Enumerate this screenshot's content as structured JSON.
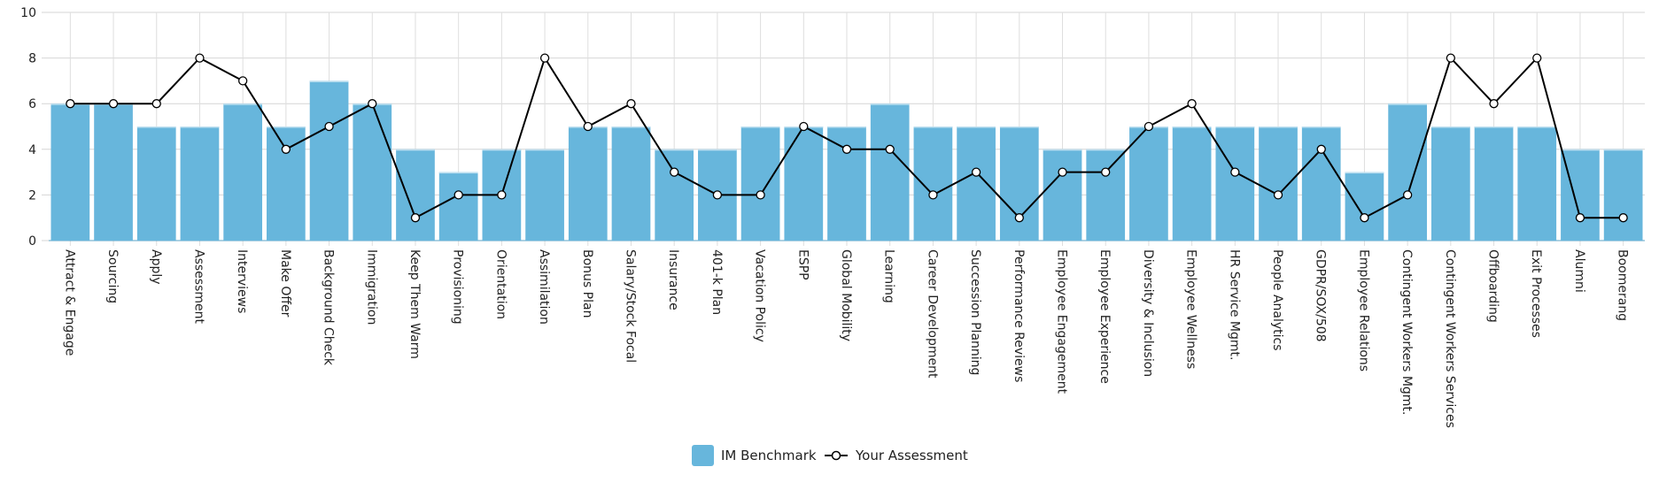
{
  "chart_data": {
    "type": "bar",
    "title": "",
    "xlabel": "",
    "ylabel": "",
    "ylim": [
      0,
      10
    ],
    "yticks": [
      0,
      2,
      4,
      6,
      8,
      10
    ],
    "grid": true,
    "legend_position": "bottom-center",
    "categories": [
      "Attract & Engage",
      "Sourcing",
      "Apply",
      "Assessment",
      "Interviews",
      "Make Offer",
      "Background Check",
      "Immigration",
      "Keep Them Warm",
      "Provisioning",
      "Orientation",
      "Assimilation",
      "Bonus Plan",
      "Salary/Stock Focal",
      "Insurance",
      "401-k Plan",
      "Vacation Policy",
      "ESPP",
      "Global Mobility",
      "Learning",
      "Career Development",
      "Succession Planning",
      "Performance Reviews",
      "Employee Engagement",
      "Employee Experience",
      "Diversity & Inclusion",
      "Employee Wellness",
      "HR Service Mgmt.",
      "People Analytics",
      "GDPR/SOX/508",
      "Employee Relations",
      "Contingent Workers Mgmt.",
      "Contingent Workers Services",
      "Offboarding",
      "Exit Processes",
      "Alumni",
      "Boomerang"
    ],
    "series": [
      {
        "name": "IM Benchmark",
        "type": "bar",
        "color": "#67b6dc",
        "values": [
          6,
          6,
          5,
          5,
          6,
          5,
          7,
          6,
          4,
          3,
          4,
          4,
          5,
          5,
          4,
          4,
          5,
          5,
          5,
          6,
          5,
          5,
          5,
          4,
          4,
          5,
          5,
          5,
          5,
          5,
          3,
          6,
          5,
          5,
          5,
          4,
          4
        ]
      },
      {
        "name": "Your Assessment",
        "type": "line",
        "color": "#000000",
        "values": [
          6,
          6,
          6,
          8,
          7,
          4,
          5,
          6,
          1,
          2,
          2,
          8,
          5,
          6,
          3,
          2,
          2,
          5,
          4,
          4,
          2,
          3,
          1,
          3,
          3,
          5,
          6,
          3,
          2,
          4,
          1,
          2,
          8,
          6,
          8,
          1,
          1
        ]
      }
    ]
  }
}
